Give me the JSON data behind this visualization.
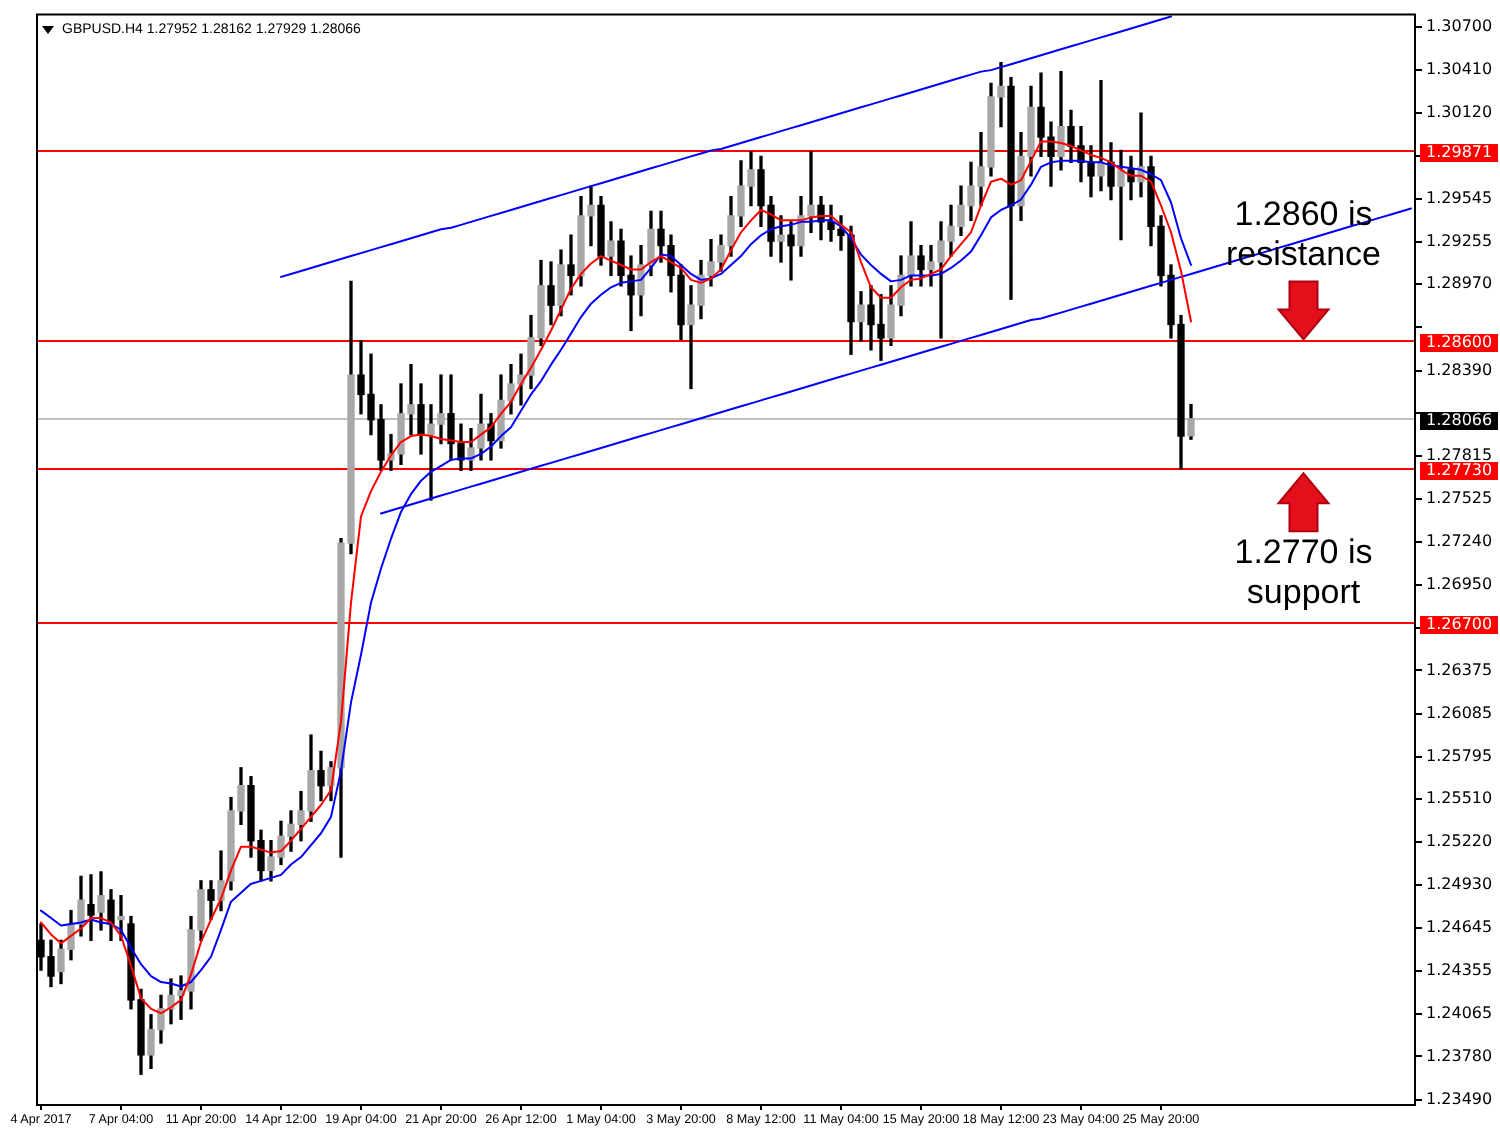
{
  "chart_data": {
    "type": "candlestick",
    "title": "GBPUSD.H4 1.27952 1.28162 1.27929 1.28066",
    "categories": [
      "4 Apr 2017",
      null,
      null,
      null,
      null,
      null,
      null,
      null,
      "7 Apr 04:00",
      null,
      null,
      null,
      null,
      null,
      null,
      null,
      "11 Apr 20:00",
      null,
      null,
      null,
      null,
      null,
      null,
      null,
      "14 Apr 12:00",
      null,
      null,
      null,
      null,
      null,
      null,
      null,
      "19 Apr 04:00",
      null,
      null,
      null,
      null,
      null,
      null,
      null,
      "21 Apr 20:00",
      null,
      null,
      null,
      null,
      null,
      null,
      null,
      "26 Apr 12:00",
      null,
      null,
      null,
      null,
      null,
      null,
      null,
      "1 May 04:00",
      null,
      null,
      null,
      null,
      null,
      null,
      null,
      "3 May 20:00",
      null,
      null,
      null,
      null,
      null,
      null,
      null,
      "8 May 12:00",
      null,
      null,
      null,
      null,
      null,
      null,
      null,
      "11 May 04:00",
      null,
      null,
      null,
      null,
      null,
      null,
      null,
      "15 May 20:00",
      null,
      null,
      null,
      null,
      null,
      null,
      null,
      "18 May 12:00",
      null,
      null,
      null,
      null,
      null,
      null,
      null,
      "23 May 04:00",
      null,
      null,
      null,
      null,
      null,
      null,
      null,
      "25 May 20:00",
      null,
      null,
      null,
      null,
      null,
      null,
      null,
      null,
      null,
      null,
      null,
      null,
      null,
      null,
      null,
      null,
      null,
      null,
      null,
      null,
      null,
      null,
      null,
      null,
      null
    ],
    "ohlc": [
      [
        1.2456,
        1.2467,
        1.2436,
        1.2445
      ],
      [
        1.2445,
        1.2456,
        1.2425,
        1.2432
      ],
      [
        1.2435,
        1.2456,
        1.2427,
        1.245
      ],
      [
        1.245,
        1.2476,
        1.2443,
        1.2467
      ],
      [
        1.2467,
        1.2499,
        1.2459,
        1.2483
      ],
      [
        1.248,
        1.25,
        1.2456,
        1.2473
      ],
      [
        1.2475,
        1.2502,
        1.2463,
        1.2486
      ],
      [
        1.2483,
        1.249,
        1.2456,
        1.2467
      ],
      [
        1.247,
        1.2486,
        1.2456,
        1.2472
      ],
      [
        1.2467,
        1.2472,
        1.241,
        1.2416
      ],
      [
        1.2416,
        1.2423,
        1.2366,
        1.2379
      ],
      [
        1.2379,
        1.2406,
        1.237,
        1.2396
      ],
      [
        1.2396,
        1.2419,
        1.2387,
        1.241
      ],
      [
        1.241,
        1.243,
        1.24,
        1.2419
      ],
      [
        1.2419,
        1.2432,
        1.2403,
        1.2422
      ],
      [
        1.2422,
        1.2472,
        1.241,
        1.2463
      ],
      [
        1.2463,
        1.2496,
        1.2456,
        1.249
      ],
      [
        1.249,
        1.2496,
        1.247,
        1.2483
      ],
      [
        1.2483,
        1.2516,
        1.2476,
        1.2496
      ],
      [
        1.2496,
        1.2552,
        1.249,
        1.2543
      ],
      [
        1.2543,
        1.2572,
        1.2534,
        1.256
      ],
      [
        1.256,
        1.2566,
        1.2512,
        1.2523
      ],
      [
        1.2523,
        1.253,
        1.2496,
        1.2503
      ],
      [
        1.2503,
        1.2523,
        1.2496,
        1.2512
      ],
      [
        1.2512,
        1.2536,
        1.2507,
        1.2526
      ],
      [
        1.2526,
        1.2543,
        1.2516,
        1.2534
      ],
      [
        1.2534,
        1.2556,
        1.2523,
        1.2543
      ],
      [
        1.2543,
        1.2594,
        1.2536,
        1.257
      ],
      [
        1.257,
        1.2583,
        1.255,
        1.256
      ],
      [
        1.256,
        1.2576,
        1.255,
        1.2572
      ],
      [
        1.2572,
        1.2726,
        1.2512,
        1.2723
      ],
      [
        1.2723,
        1.2899,
        1.2716,
        1.2836
      ],
      [
        1.2836,
        1.2859,
        1.281,
        1.2823
      ],
      [
        1.2823,
        1.285,
        1.2796,
        1.2806
      ],
      [
        1.2806,
        1.2816,
        1.2772,
        1.2779
      ],
      [
        1.2779,
        1.2796,
        1.2772,
        1.2783
      ],
      [
        1.2783,
        1.283,
        1.2776,
        1.281
      ],
      [
        1.281,
        1.2843,
        1.2796,
        1.2816
      ],
      [
        1.2816,
        1.283,
        1.2783,
        1.2796
      ],
      [
        1.2796,
        1.2816,
        1.2752,
        1.2803
      ],
      [
        1.2803,
        1.2836,
        1.279,
        1.281
      ],
      [
        1.281,
        1.2836,
        1.2779,
        1.279
      ],
      [
        1.279,
        1.2803,
        1.2772,
        1.2779
      ],
      [
        1.2779,
        1.28,
        1.2772,
        1.2787
      ],
      [
        1.2787,
        1.2823,
        1.2779,
        1.2803
      ],
      [
        1.2803,
        1.281,
        1.2779,
        1.2792
      ],
      [
        1.2792,
        1.2836,
        1.2787,
        1.2819
      ],
      [
        1.2819,
        1.2843,
        1.281,
        1.283
      ],
      [
        1.283,
        1.285,
        1.2816,
        1.2836
      ],
      [
        1.2836,
        1.2876,
        1.2827,
        1.2861
      ],
      [
        1.2861,
        1.2913,
        1.2856,
        1.2896
      ],
      [
        1.2896,
        1.2912,
        1.287,
        1.2883
      ],
      [
        1.2883,
        1.292,
        1.2876,
        1.291
      ],
      [
        1.291,
        1.293,
        1.289,
        1.2903
      ],
      [
        1.2903,
        1.2956,
        1.2896,
        1.2943
      ],
      [
        1.2943,
        1.2963,
        1.2923,
        1.295
      ],
      [
        1.295,
        1.2956,
        1.291,
        1.2916
      ],
      [
        1.2916,
        1.2939,
        1.2903,
        1.2926
      ],
      [
        1.2926,
        1.2934,
        1.2896,
        1.2903
      ],
      [
        1.2903,
        1.2916,
        1.2866,
        1.289
      ],
      [
        1.289,
        1.2923,
        1.2876,
        1.291
      ],
      [
        1.291,
        1.2946,
        1.2903,
        1.2934
      ],
      [
        1.2934,
        1.2946,
        1.2912,
        1.2923
      ],
      [
        1.2923,
        1.293,
        1.2892,
        1.2903
      ],
      [
        1.2903,
        1.291,
        1.286,
        1.287
      ],
      [
        1.287,
        1.2896,
        1.2827,
        1.2883
      ],
      [
        1.2883,
        1.2913,
        1.2874,
        1.2903
      ],
      [
        1.2903,
        1.2927,
        1.2896,
        1.2912
      ],
      [
        1.2912,
        1.293,
        1.2906,
        1.2923
      ],
      [
        1.2923,
        1.2956,
        1.2916,
        1.2943
      ],
      [
        1.2943,
        1.298,
        1.2936,
        1.2963
      ],
      [
        1.2963,
        1.2986,
        1.295,
        1.2974
      ],
      [
        1.2974,
        1.2983,
        1.2936,
        1.295
      ],
      [
        1.295,
        1.2956,
        1.2916,
        1.2926
      ],
      [
        1.2926,
        1.2943,
        1.2912,
        1.293
      ],
      [
        1.293,
        1.2939,
        1.29,
        1.2923
      ],
      [
        1.2923,
        1.2956,
        1.2916,
        1.2943
      ],
      [
        1.2943,
        1.2986,
        1.2932,
        1.295
      ],
      [
        1.295,
        1.2956,
        1.2927,
        1.2939
      ],
      [
        1.2939,
        1.295,
        1.2926,
        1.2934
      ],
      [
        1.2934,
        1.2943,
        1.292,
        1.293
      ],
      [
        1.293,
        1.2936,
        1.285,
        1.2872
      ],
      [
        1.2872,
        1.2892,
        1.2859,
        1.2883
      ],
      [
        1.2883,
        1.2896,
        1.2853,
        1.287
      ],
      [
        1.287,
        1.289,
        1.2846,
        1.2861
      ],
      [
        1.2861,
        1.2896,
        1.2856,
        1.2883
      ],
      [
        1.2883,
        1.2916,
        1.2876,
        1.2903
      ],
      [
        1.2903,
        1.2939,
        1.2896,
        1.2916
      ],
      [
        1.2916,
        1.2923,
        1.2896,
        1.2907
      ],
      [
        1.2907,
        1.2923,
        1.2896,
        1.2912
      ],
      [
        1.2912,
        1.2939,
        1.2861,
        1.2926
      ],
      [
        1.2926,
        1.295,
        1.2916,
        1.2936
      ],
      [
        1.2936,
        1.2963,
        1.293,
        1.295
      ],
      [
        1.295,
        1.2979,
        1.294,
        1.2963
      ],
      [
        1.2963,
        1.2999,
        1.295,
        1.2976
      ],
      [
        1.2976,
        1.3032,
        1.297,
        1.3023
      ],
      [
        1.3023,
        1.3046,
        1.3003,
        1.303
      ],
      [
        1.303,
        1.3036,
        1.2887,
        1.295
      ],
      [
        1.295,
        1.2999,
        1.294,
        1.2983
      ],
      [
        1.2983,
        1.303,
        1.297,
        1.3016
      ],
      [
        1.3016,
        1.3039,
        1.2983,
        1.2996
      ],
      [
        1.2996,
        1.3006,
        1.2963,
        1.2983
      ],
      [
        1.2983,
        1.304,
        1.2974,
        1.3003
      ],
      [
        1.3003,
        1.3014,
        1.2979,
        1.299
      ],
      [
        1.299,
        1.3003,
        1.2966,
        1.2979
      ],
      [
        1.2979,
        1.299,
        1.2956,
        1.297
      ],
      [
        1.297,
        1.3034,
        1.296,
        1.2979
      ],
      [
        1.2979,
        1.2992,
        1.2954,
        1.2963
      ],
      [
        1.2963,
        1.2987,
        1.2927,
        1.2974
      ],
      [
        1.2974,
        1.2983,
        1.2954,
        1.2966
      ],
      [
        1.2966,
        1.3012,
        1.2956,
        1.2976
      ],
      [
        1.2976,
        1.2983,
        1.2923,
        1.2936
      ],
      [
        1.2936,
        1.2943,
        1.2896,
        1.2903
      ],
      [
        1.2903,
        1.291,
        1.2861,
        1.287
      ],
      [
        1.287,
        1.2876,
        1.2773,
        1.2795
      ],
      [
        1.27952,
        1.28162,
        1.27929,
        1.28066
      ],
      null,
      null,
      null,
      null,
      null,
      null,
      null,
      null,
      null,
      null,
      null,
      null,
      null,
      null,
      null,
      null,
      null,
      null,
      null,
      null,
      null,
      null
    ],
    "series": [
      {
        "type": "line",
        "color": "#ff0000",
        "values": [
          1.2468,
          1.246,
          1.2454,
          1.2459,
          1.2464,
          1.2471,
          1.2471,
          1.2468,
          1.2459,
          1.2439,
          1.2417,
          1.241,
          1.2407,
          1.2411,
          1.2416,
          1.2433,
          1.2455,
          1.247,
          1.2484,
          1.2503,
          1.2519,
          1.2519,
          1.2517,
          1.2515,
          1.2516,
          1.2523,
          1.2531,
          1.2539,
          1.2547,
          1.2557,
          1.2603,
          1.2683,
          1.2741,
          1.2758,
          1.2771,
          1.2782,
          1.2791,
          1.2795,
          1.2796,
          1.2795,
          1.2793,
          1.2792,
          1.2791,
          1.2791,
          1.2796,
          1.2801,
          1.281,
          1.2818,
          1.283,
          1.2841,
          1.2853,
          1.2866,
          1.288,
          1.2894,
          1.2904,
          1.2911,
          1.2916,
          1.2913,
          1.291,
          1.2907,
          1.2907,
          1.2912,
          1.2916,
          1.2912,
          1.2908,
          1.29,
          1.2898,
          1.2901,
          1.2907,
          1.292,
          1.2932,
          1.294,
          1.2947,
          1.2944,
          1.294,
          1.294,
          1.294,
          1.2942,
          1.2943,
          1.2943,
          1.2937,
          1.2932,
          1.2912,
          1.2895,
          1.2888,
          1.2888,
          1.2895,
          1.29,
          1.2901,
          1.2904,
          1.2907,
          1.2916,
          1.2924,
          1.2932,
          1.295,
          1.2966,
          1.2968,
          1.2964,
          1.2967,
          1.298,
          1.2993,
          1.2993,
          1.2992,
          1.299,
          1.2987,
          1.2984,
          1.2982,
          1.2979,
          1.2974,
          1.297,
          1.297,
          1.2966,
          1.295,
          1.2932,
          1.2906,
          1.2872,
          null,
          null,
          null,
          null,
          null,
          null,
          null,
          null,
          null,
          null,
          null,
          null,
          null,
          null,
          null,
          null,
          null,
          null,
          null,
          null,
          null,
          null
        ]
      },
      {
        "type": "line",
        "color": "#0000ff",
        "values": [
          1.2476,
          1.2471,
          1.2466,
          1.2467,
          1.2468,
          1.247,
          1.2468,
          1.2467,
          1.2463,
          1.2451,
          1.244,
          1.2432,
          1.2428,
          1.2427,
          1.2425,
          1.2428,
          1.2436,
          1.2445,
          1.2463,
          1.2482,
          1.2488,
          1.2494,
          1.2496,
          1.2498,
          1.25,
          1.2507,
          1.2512,
          1.252,
          1.2528,
          1.2539,
          1.257,
          1.2616,
          1.2648,
          1.2683,
          1.2706,
          1.2726,
          1.2744,
          1.2756,
          1.2765,
          1.2771,
          1.2775,
          1.2779,
          1.278,
          1.278,
          1.2783,
          1.2788,
          1.2795,
          1.2801,
          1.2812,
          1.2823,
          1.2832,
          1.2843,
          1.2853,
          1.2864,
          1.2875,
          1.2884,
          1.289,
          1.2895,
          1.2898,
          1.2899,
          1.29,
          1.2908,
          1.2917,
          1.2916,
          1.291,
          1.2904,
          1.29,
          1.2901,
          1.2904,
          1.291,
          1.2916,
          1.2924,
          1.293,
          1.2934,
          1.2936,
          1.2937,
          1.2939,
          1.2939,
          1.294,
          1.294,
          1.2936,
          1.2928,
          1.2917,
          1.291,
          1.2904,
          1.2899,
          1.29,
          1.2903,
          1.2903,
          1.2903,
          1.2904,
          1.2908,
          1.2913,
          1.2919,
          1.293,
          1.2942,
          1.2947,
          1.295,
          1.2954,
          1.2964,
          1.2976,
          1.2979,
          1.298,
          1.298,
          1.298,
          1.2979,
          1.2979,
          1.2977,
          1.2976,
          1.2975,
          1.2974,
          1.2971,
          1.2967,
          1.2952,
          1.2928,
          1.291,
          null,
          null,
          null,
          null,
          null,
          null,
          null,
          null,
          null,
          null,
          null,
          null,
          null,
          null,
          null,
          null,
          null,
          null,
          null,
          null,
          null,
          null
        ]
      },
      {
        "type": "line",
        "color": "#0000ff",
        "values": [
          null,
          null,
          null,
          null,
          null,
          null,
          null,
          null,
          null,
          null,
          null,
          null,
          null,
          null,
          null,
          null,
          null,
          null,
          null,
          null,
          null,
          null,
          null,
          null,
          1.2902,
          1.2904,
          1.2906,
          1.2908,
          1.291,
          1.2912,
          1.2914,
          1.2916,
          1.2918,
          1.292,
          1.2922,
          1.2924,
          1.2926,
          1.2928,
          1.293,
          1.2932,
          1.2934,
          1.2935,
          1.2937,
          1.2939,
          1.2941,
          1.2943,
          1.2945,
          1.2947,
          1.2949,
          1.2951,
          1.2953,
          1.2955,
          1.2957,
          1.2959,
          1.2961,
          1.2963,
          1.2965,
          1.2967,
          1.2969,
          1.2971,
          1.2973,
          1.2975,
          1.2977,
          1.2979,
          1.2981,
          1.2983,
          1.2985,
          1.2987,
          1.2988,
          1.299,
          1.2992,
          1.2994,
          1.2996,
          1.2998,
          1.3,
          1.3002,
          1.3004,
          1.3006,
          1.3008,
          1.301,
          1.3012,
          1.3014,
          1.3016,
          1.3018,
          1.302,
          1.3022,
          1.3024,
          1.3026,
          1.3028,
          1.303,
          1.3032,
          1.3034,
          1.3036,
          1.3038,
          1.304,
          1.3041,
          1.3043,
          1.3045,
          1.3047,
          1.3049,
          1.3051,
          1.3053,
          1.3055,
          1.3057,
          1.3059,
          1.3061,
          1.3063,
          1.3065,
          1.3067,
          1.3069,
          1.3071,
          1.3073,
          1.3075,
          1.3077,
          null,
          null,
          null,
          null,
          null,
          null,
          null,
          null,
          null,
          null,
          null,
          null,
          null,
          null,
          null,
          null,
          null,
          null,
          null,
          null,
          null,
          null,
          null,
          null
        ]
      },
      {
        "type": "line",
        "color": "#0000ff",
        "values": [
          null,
          null,
          null,
          null,
          null,
          null,
          null,
          null,
          null,
          null,
          null,
          null,
          null,
          null,
          null,
          null,
          null,
          null,
          null,
          null,
          null,
          null,
          null,
          null,
          null,
          null,
          null,
          null,
          null,
          null,
          null,
          null,
          null,
          null,
          1.2743,
          1.2745,
          1.2747,
          1.2749,
          1.2751,
          1.2753,
          1.2755,
          1.2757,
          1.2759,
          1.2761,
          1.2763,
          1.2765,
          1.2767,
          1.2769,
          1.2771,
          1.2773,
          1.2775,
          1.2777,
          1.2779,
          1.2781,
          1.2783,
          1.2785,
          1.2787,
          1.2789,
          1.2791,
          1.2793,
          1.2795,
          1.2797,
          1.2799,
          1.2801,
          1.2803,
          1.2805,
          1.2807,
          1.2809,
          1.2811,
          1.2813,
          1.2815,
          1.2817,
          1.2819,
          1.2821,
          1.2823,
          1.2825,
          1.2827,
          1.2829,
          1.2831,
          1.2833,
          1.2835,
          1.2837,
          1.2839,
          1.2841,
          1.2843,
          1.2845,
          1.2847,
          1.2849,
          1.2851,
          1.2853,
          1.2855,
          1.2857,
          1.2859,
          1.2861,
          1.2863,
          1.2865,
          1.2867,
          1.2869,
          1.2871,
          1.2873,
          1.2874,
          1.2876,
          1.2878,
          1.288,
          1.2882,
          1.2884,
          1.2886,
          1.2888,
          1.289,
          1.2892,
          1.2894,
          1.2896,
          1.2898,
          1.29,
          1.2902,
          1.2904,
          1.2906,
          1.2908,
          1.291,
          1.2912,
          1.2914,
          1.2916,
          1.2918,
          1.292,
          1.2922,
          1.2924,
          1.2926,
          1.2928,
          1.293,
          1.2932,
          1.2934,
          1.2936,
          1.2938,
          1.294,
          1.2942,
          1.2944,
          1.2946,
          1.2948
        ]
      }
    ],
    "ylim": [
      1.2346,
      1.3079
    ],
    "yticks": [
      {
        "value": 1.307,
        "label": "1.30700"
      },
      {
        "value": 1.3041,
        "label": "1.30410"
      },
      {
        "value": 1.3012,
        "label": "1.30120"
      },
      {
        "value": 1.29835,
        "label": null
      },
      {
        "value": 1.29545,
        "label": "1.29545"
      },
      {
        "value": 1.29255,
        "label": "1.29255"
      },
      {
        "value": 1.2897,
        "label": "1.28970"
      },
      {
        "value": 1.2868,
        "label": null
      },
      {
        "value": 1.2839,
        "label": "1.28390"
      },
      {
        "value": 1.28105,
        "label": null
      },
      {
        "value": 1.27815,
        "label": "1.27815"
      },
      {
        "value": 1.27525,
        "label": "1.27525"
      },
      {
        "value": 1.2724,
        "label": "1.27240"
      },
      {
        "value": 1.2695,
        "label": "1.26950"
      },
      {
        "value": 1.2666,
        "label": null
      },
      {
        "value": 1.26375,
        "label": "1.26375"
      },
      {
        "value": 1.26085,
        "label": "1.26085"
      },
      {
        "value": 1.25795,
        "label": "1.25795"
      },
      {
        "value": 1.2551,
        "label": "1.25510"
      },
      {
        "value": 1.2522,
        "label": "1.25220"
      },
      {
        "value": 1.2493,
        "label": "1.24930"
      },
      {
        "value": 1.24645,
        "label": "1.24645"
      },
      {
        "value": 1.24355,
        "label": "1.24355"
      },
      {
        "value": 1.24065,
        "label": "1.24065"
      },
      {
        "value": 1.2378,
        "label": "1.23780"
      },
      {
        "value": 1.2349,
        "label": "1.23490"
      }
    ],
    "ref_lines": [
      {
        "axis": "y",
        "value": 1.29871,
        "label": "1.29871",
        "color": "#ff0000"
      },
      {
        "axis": "y",
        "value": 1.286,
        "label": "1.28600",
        "color": "#ff0000"
      },
      {
        "axis": "y",
        "value": 1.28066,
        "label": "1.28066",
        "color": "#c0c0c0"
      },
      {
        "axis": "y",
        "value": 1.2773,
        "label": "1.27730",
        "color": "#ff0000"
      },
      {
        "axis": "y",
        "value": 1.267,
        "label": "1.26700",
        "color": "#ff0000"
      }
    ],
    "annotations": [
      {
        "text": "1.2860 is resistance",
        "y": 1.286
      },
      {
        "text": "1.2770 is support",
        "y": 1.277
      }
    ]
  }
}
